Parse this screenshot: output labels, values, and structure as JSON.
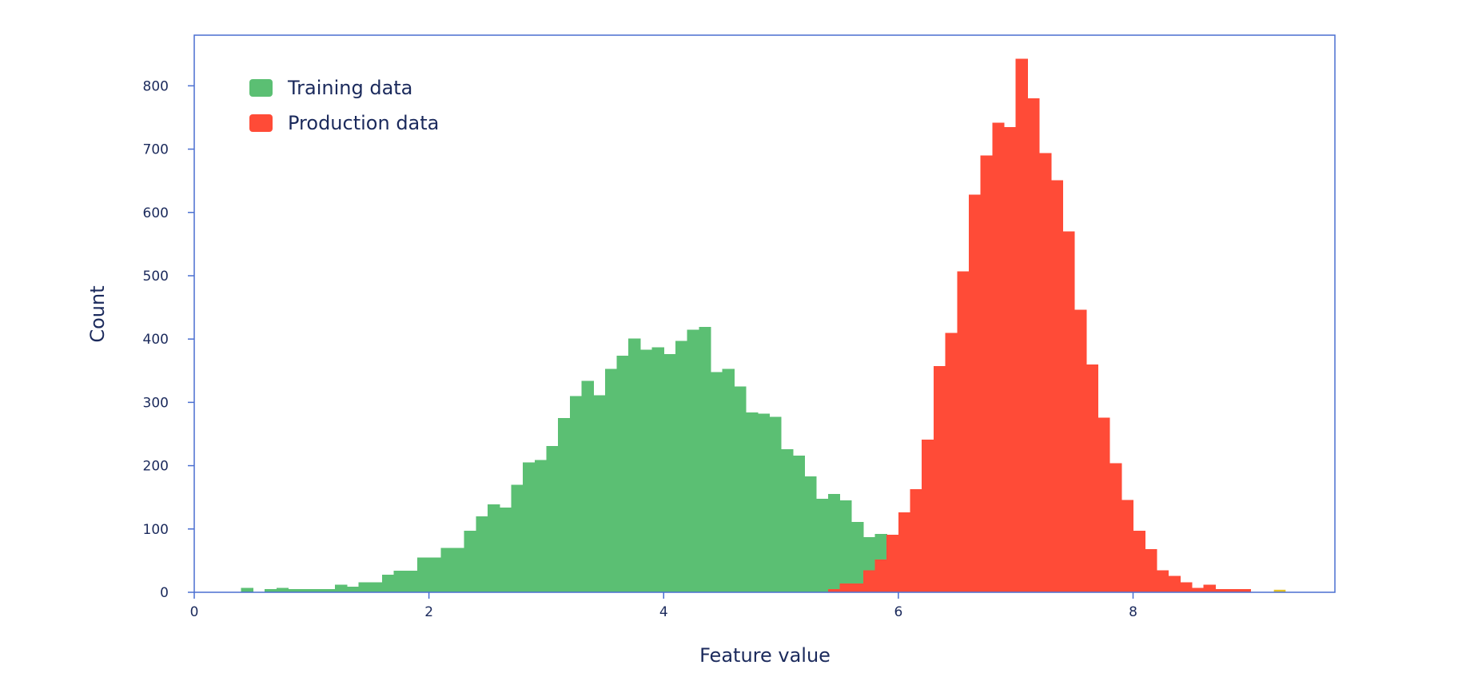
{
  "chart_data": {
    "type": "histogram",
    "xlabel": "Feature value",
    "ylabel": "Count",
    "xlim": [
      0,
      9.72
    ],
    "ylim": [
      0,
      880
    ],
    "xticks": [
      0,
      2,
      4,
      6,
      8
    ],
    "yticks": [
      0,
      100,
      200,
      300,
      400,
      500,
      600,
      700,
      800
    ],
    "grid": false,
    "legend_position": "top-left",
    "series": [
      {
        "name": "Training data",
        "color": "#5bbf73",
        "edge_color": "#1ab8b0",
        "bin_width": 0.1,
        "bin_start": 0.4,
        "values": [
          7,
          0,
          5,
          7,
          5,
          5,
          5,
          5,
          12,
          9,
          16,
          16,
          28,
          34,
          34,
          55,
          55,
          70,
          70,
          97,
          120,
          139,
          134,
          170,
          205,
          209,
          231,
          275,
          310,
          334,
          311,
          353,
          374,
          401,
          383,
          387,
          376,
          397,
          415,
          419,
          348,
          353,
          325,
          284,
          282,
          277,
          226,
          216,
          183,
          148,
          155,
          145,
          111,
          87,
          92,
          67,
          44,
          32,
          20,
          10,
          5,
          3,
          0,
          2
        ]
      },
      {
        "name": "Production data",
        "color": "#ff4b37",
        "edge_color": "#ff4b37",
        "bin_width": 0.1,
        "bin_start": 5.4,
        "values": [
          5,
          14,
          14,
          35,
          52,
          91,
          126,
          163,
          241,
          357,
          410,
          507,
          628,
          690,
          742,
          735,
          843,
          780,
          694,
          651,
          570,
          446,
          360,
          276,
          204,
          146,
          97,
          68,
          35,
          26,
          16,
          7,
          12,
          5,
          5,
          5
        ],
        "outliers": [
          {
            "x": 9.25,
            "value": 4,
            "color": "#e3c22b"
          }
        ]
      }
    ]
  }
}
